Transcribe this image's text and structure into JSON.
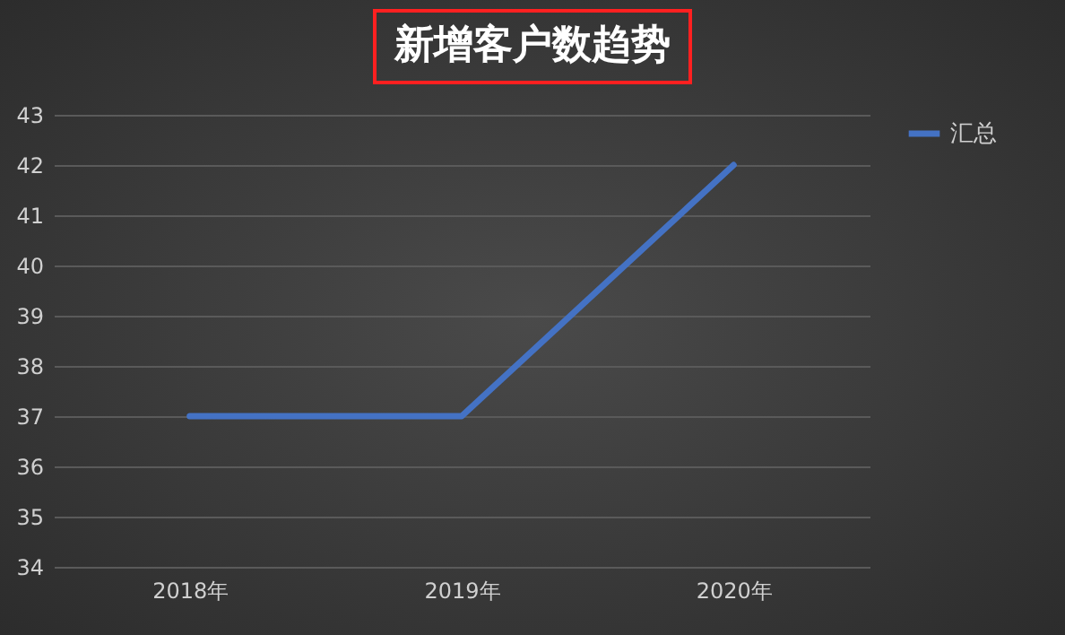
{
  "chart_data": {
    "type": "line",
    "title": "新增客户数趋势",
    "categories": [
      "2018年",
      "2019年",
      "2020年"
    ],
    "series": [
      {
        "name": "汇总",
        "color": "#4472c4",
        "values": [
          37,
          37,
          42
        ]
      }
    ],
    "ylim": [
      34,
      43
    ],
    "yticks": [
      34,
      35,
      36,
      37,
      38,
      39,
      40,
      41,
      42,
      43
    ],
    "grid": "y",
    "legend": "right",
    "marker": "none",
    "line_style": "solid"
  }
}
